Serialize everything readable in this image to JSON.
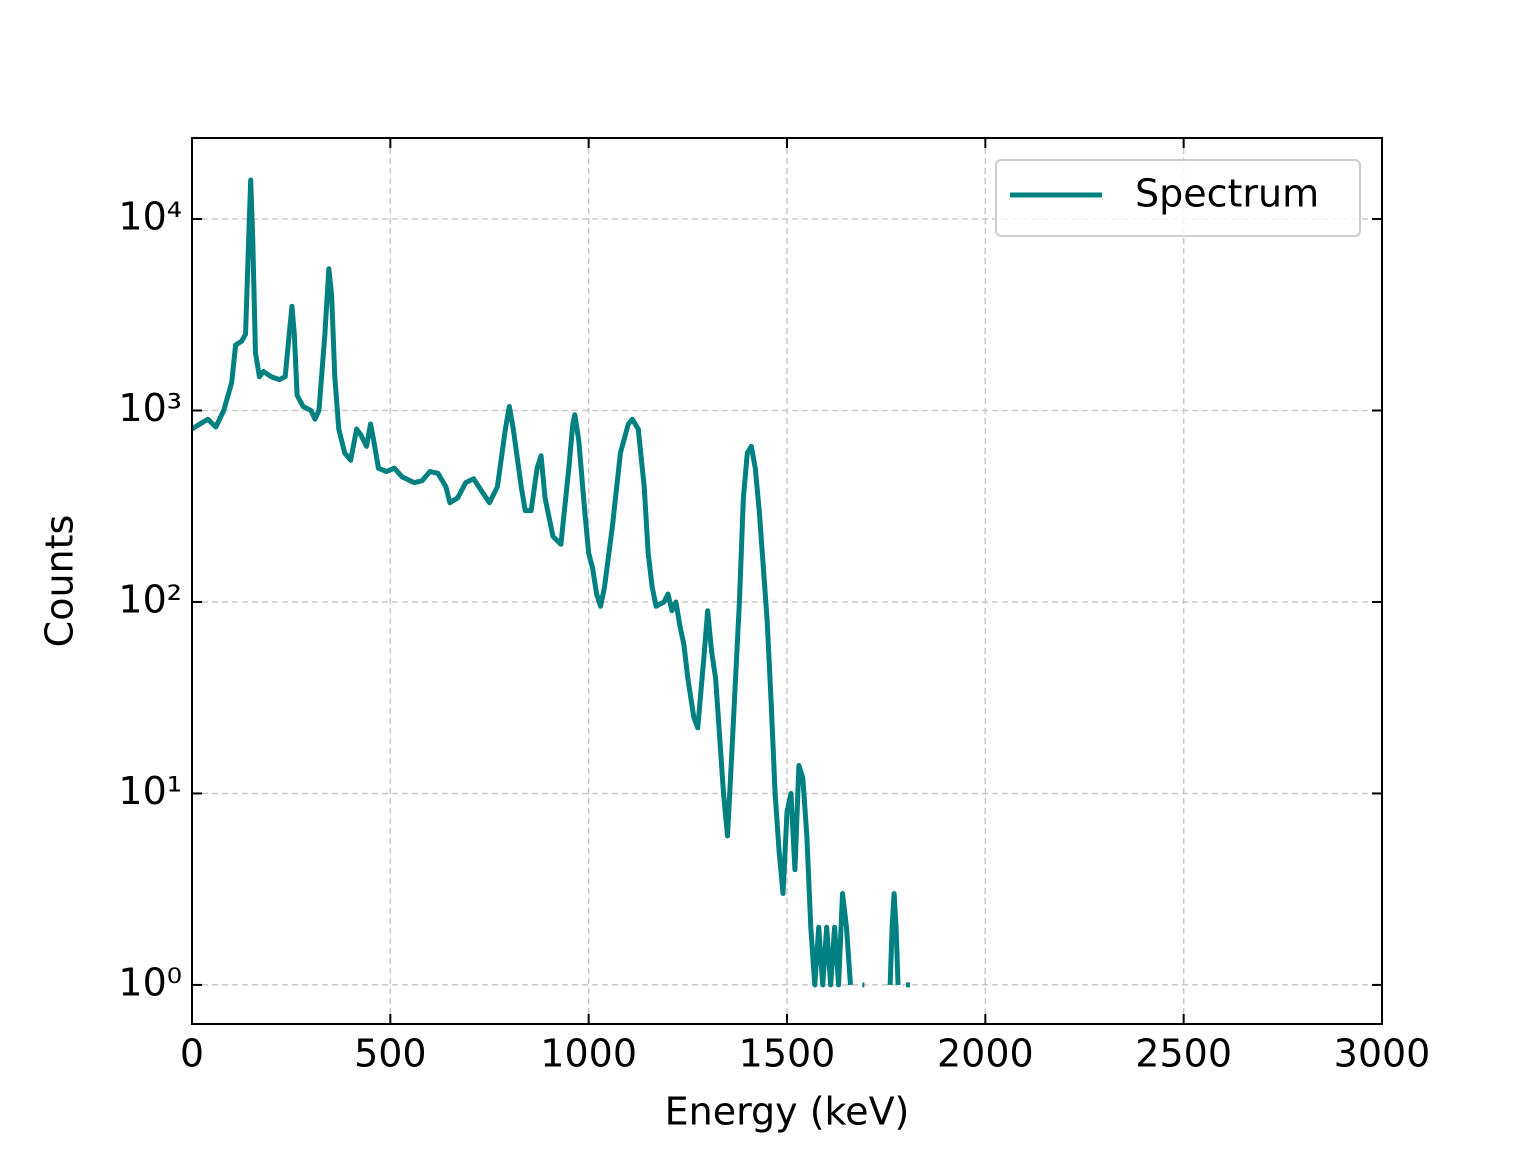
{
  "chart_data": {
    "type": "line",
    "x_label": "Energy (keV)",
    "y_label": "Counts",
    "x": [
      0,
      20,
      40,
      60,
      80,
      100,
      110,
      125,
      135,
      143,
      148,
      153,
      160,
      170,
      180,
      200,
      220,
      235,
      245,
      252,
      258,
      265,
      280,
      300,
      310,
      320,
      335,
      345,
      352,
      360,
      370,
      385,
      400,
      415,
      425,
      440,
      450,
      458,
      470,
      490,
      510,
      530,
      560,
      580,
      600,
      620,
      640,
      650,
      670,
      690,
      710,
      730,
      750,
      770,
      790,
      800,
      810,
      830,
      840,
      855,
      870,
      880,
      890,
      910,
      930,
      950,
      960,
      965,
      975,
      990,
      1000,
      1010,
      1020,
      1030,
      1040,
      1060,
      1080,
      1100,
      1110,
      1125,
      1140,
      1150,
      1160,
      1170,
      1190,
      1200,
      1210,
      1220,
      1230,
      1240,
      1250,
      1265,
      1275,
      1290,
      1300,
      1310,
      1320,
      1330,
      1340,
      1350,
      1360,
      1380,
      1390,
      1400,
      1410,
      1420,
      1430,
      1450,
      1460,
      1470,
      1480,
      1490,
      1500,
      1510,
      1520,
      1530,
      1540,
      1550,
      1560,
      1570,
      1580,
      1590,
      1600,
      1610,
      1620,
      1630,
      1640,
      1650,
      1660,
      1670,
      1690,
      1695,
      1700,
      1760,
      1765,
      1770,
      1775,
      1780,
      1790,
      1800,
      1805,
      1810
    ],
    "series": [
      {
        "name": "Spectrum",
        "color": "#008080",
        "values": [
          800,
          850,
          900,
          820,
          1000,
          1400,
          2200,
          2300,
          2500,
          8000,
          16000,
          8000,
          2000,
          1500,
          1600,
          1500,
          1450,
          1500,
          2500,
          3500,
          2500,
          1200,
          1050,
          1000,
          900,
          1000,
          2500,
          5500,
          4000,
          1500,
          800,
          600,
          550,
          800,
          750,
          650,
          850,
          700,
          500,
          480,
          500,
          450,
          420,
          430,
          480,
          470,
          400,
          330,
          350,
          420,
          440,
          380,
          330,
          400,
          800,
          1050,
          800,
          400,
          300,
          300,
          500,
          580,
          350,
          220,
          200,
          500,
          850,
          950,
          700,
          300,
          180,
          150,
          110,
          95,
          120,
          250,
          600,
          850,
          900,
          800,
          400,
          180,
          120,
          95,
          100,
          110,
          90,
          100,
          75,
          60,
          40,
          25,
          22,
          50,
          90,
          55,
          40,
          20,
          10,
          6,
          15,
          100,
          350,
          600,
          650,
          500,
          300,
          80,
          30,
          10,
          5,
          3,
          8,
          10,
          4,
          14,
          12,
          6,
          2,
          1,
          2,
          1,
          2,
          1,
          2,
          1,
          3,
          2,
          1,
          null,
          1,
          1,
          null,
          1,
          2,
          3,
          2,
          1,
          null,
          1,
          1,
          1
        ]
      }
    ],
    "xlim": [
      0,
      3000
    ],
    "xticks": [
      0,
      500,
      1000,
      1500,
      2000,
      2500,
      3000
    ],
    "ylim": [
      0.625,
      26500
    ],
    "log_y": true,
    "yticks": [
      {
        "value": 1,
        "label": "10⁰"
      },
      {
        "value": 10,
        "label": "10¹"
      },
      {
        "value": 100,
        "label": "10²"
      },
      {
        "value": 1000,
        "label": "10³"
      },
      {
        "value": 10000,
        "label": "10⁴"
      }
    ],
    "grid": true,
    "legend": "upper right"
  }
}
